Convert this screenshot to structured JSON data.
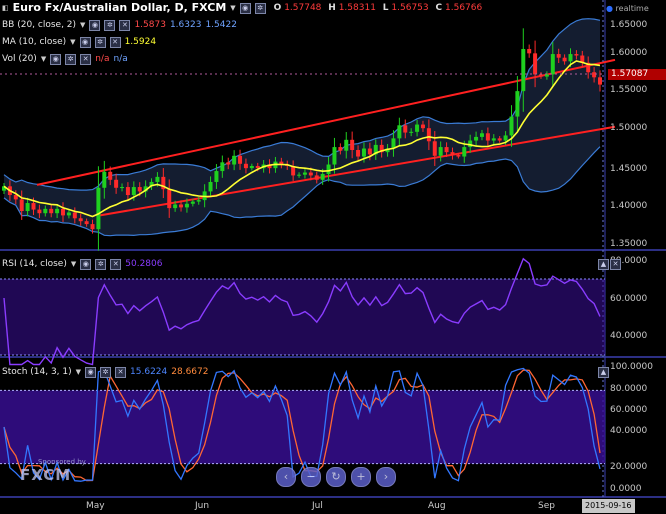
{
  "header": {
    "symbol": "Euro Fx/Australian Dollar, D, FXCM",
    "ohlc": {
      "o_label": "O",
      "o": "1.57748",
      "h_label": "H",
      "h": "1.58311",
      "l_label": "L",
      "l": "1.56753",
      "c_label": "C",
      "c": "1.56766"
    },
    "realtime": "realtime"
  },
  "indicators": {
    "bb": {
      "label": "BB (20, close, 2)",
      "v1": "1.5873",
      "v2": "1.6323",
      "v3": "1.5422"
    },
    "ma": {
      "label": "MA (10, close)",
      "v": "1.5924"
    },
    "vol": {
      "label": "Vol (20)",
      "v1": "n/a",
      "v2": "n/a"
    },
    "rsi": {
      "label": "RSI (14, close)",
      "v": "50.2806"
    },
    "stoch": {
      "label": "Stoch (14, 3, 1)",
      "k": "15.6224",
      "d": "28.6672"
    }
  },
  "price_axis": [
    "1.65000",
    "1.60000",
    "1.55000",
    "1.50000",
    "1.45000",
    "1.40000",
    "1.35000"
  ],
  "current_price": "1.57087",
  "rsi_axis": [
    "80.0000",
    "60.0000",
    "40.0000"
  ],
  "stoch_axis": [
    "100.0000",
    "80.0000",
    "60.0000",
    "40.0000",
    "20.0000",
    "0.0000"
  ],
  "x_axis": [
    "May",
    "Jun",
    "Jul",
    "Aug",
    "Sep"
  ],
  "date_marker": "2015-09-16",
  "sponsor": "Sponsored by",
  "logo": "FXCM",
  "colors": {
    "up": "#1fd01f",
    "down": "#ff2a2a",
    "bb": "#3a7bd5",
    "ma": "#ffff33",
    "channel": "#ff2020",
    "rsi": "#8a3cff",
    "stoch_k": "#3377ff",
    "stoch_d": "#ff6633",
    "panel_band": "#3a0f99"
  },
  "nav_icons": [
    "back-icon",
    "zoom-out-icon",
    "reset-icon",
    "zoom-in-icon",
    "forward-icon"
  ],
  "chart_data": {
    "type": "candlestick",
    "title": "Euro Fx/Australian Dollar, D, FXCM",
    "x_labels": [
      "May",
      "Jun",
      "Jul",
      "Aug",
      "Sep"
    ],
    "ylim": [
      1.33,
      1.67
    ],
    "close": [
      1.428,
      1.416,
      1.41,
      1.394,
      1.405,
      1.396,
      1.391,
      1.397,
      1.391,
      1.397,
      1.388,
      1.392,
      1.384,
      1.38,
      1.376,
      1.369,
      1.426,
      1.448,
      1.437,
      1.426,
      1.427,
      1.416,
      1.427,
      1.421,
      1.428,
      1.434,
      1.441,
      1.424,
      1.398,
      1.403,
      1.399,
      1.404,
      1.407,
      1.409,
      1.421,
      1.434,
      1.449,
      1.461,
      1.458,
      1.47,
      1.459,
      1.453,
      1.456,
      1.453,
      1.458,
      1.453,
      1.462,
      1.458,
      1.456,
      1.443,
      1.444,
      1.447,
      1.443,
      1.437,
      1.445,
      1.458,
      1.482,
      1.477,
      1.492,
      1.478,
      1.469,
      1.48,
      1.472,
      1.485,
      1.475,
      1.48,
      1.494,
      1.512,
      1.502,
      1.503,
      1.513,
      1.508,
      1.49,
      1.47,
      1.482,
      1.475,
      1.471,
      1.469,
      1.482,
      1.491,
      1.496,
      1.501,
      1.491,
      1.494,
      1.491,
      1.498,
      1.524,
      1.559,
      1.617,
      1.611,
      1.582,
      1.579,
      1.582,
      1.61,
      1.605,
      1.6,
      1.61,
      1.608,
      1.598,
      1.585,
      1.578,
      1.568
    ],
    "indicator_values": {
      "rsi": 50.2806,
      "stoch_k": 15.6224,
      "stoch_d": 28.6672
    }
  }
}
